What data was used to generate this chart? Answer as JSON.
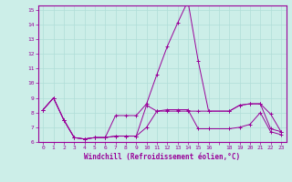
{
  "xlabel": "Windchill (Refroidissement éolien,°C)",
  "line_color": "#990099",
  "background_color": "#cceee8",
  "grid_color": "#b0ddd8",
  "xlim": [
    -0.5,
    23.5
  ],
  "ylim": [
    6,
    15.3
  ],
  "yticks": [
    6,
    7,
    8,
    9,
    10,
    11,
    12,
    13,
    14,
    15
  ],
  "xticks": [
    0,
    1,
    2,
    3,
    4,
    5,
    6,
    7,
    8,
    9,
    10,
    11,
    12,
    13,
    14,
    15,
    16,
    18,
    19,
    20,
    21,
    22,
    23
  ],
  "line1_x": [
    0,
    1,
    2,
    3,
    4,
    5,
    6,
    7,
    8,
    9,
    10,
    11,
    12,
    13,
    14,
    15,
    16,
    18,
    19,
    20,
    21,
    22,
    23
  ],
  "line1_y": [
    8.2,
    9.0,
    7.5,
    6.3,
    6.2,
    6.3,
    6.3,
    6.4,
    6.4,
    6.4,
    8.5,
    8.1,
    8.1,
    8.1,
    8.1,
    8.1,
    8.1,
    8.1,
    8.5,
    8.6,
    8.6,
    6.9,
    6.7
  ],
  "line2_x": [
    0,
    1,
    2,
    3,
    4,
    5,
    6,
    7,
    8,
    9,
    10,
    11,
    12,
    13,
    14,
    15,
    16,
    18,
    19,
    20,
    21,
    22,
    23
  ],
  "line2_y": [
    8.2,
    9.0,
    7.5,
    6.3,
    6.2,
    6.3,
    6.3,
    7.8,
    7.8,
    7.8,
    8.6,
    10.6,
    12.5,
    14.1,
    15.6,
    11.5,
    8.1,
    8.1,
    8.5,
    8.6,
    8.6,
    7.9,
    6.7
  ],
  "line3_x": [
    0,
    1,
    2,
    3,
    4,
    5,
    6,
    7,
    8,
    9,
    10,
    11,
    12,
    13,
    14,
    15,
    16,
    18,
    19,
    20,
    21,
    22,
    23
  ],
  "line3_y": [
    8.2,
    9.0,
    7.5,
    6.3,
    6.2,
    6.3,
    6.3,
    6.4,
    6.4,
    6.4,
    7.0,
    8.1,
    8.2,
    8.2,
    8.2,
    6.9,
    6.9,
    6.9,
    7.0,
    7.2,
    8.0,
    6.7,
    6.5
  ]
}
